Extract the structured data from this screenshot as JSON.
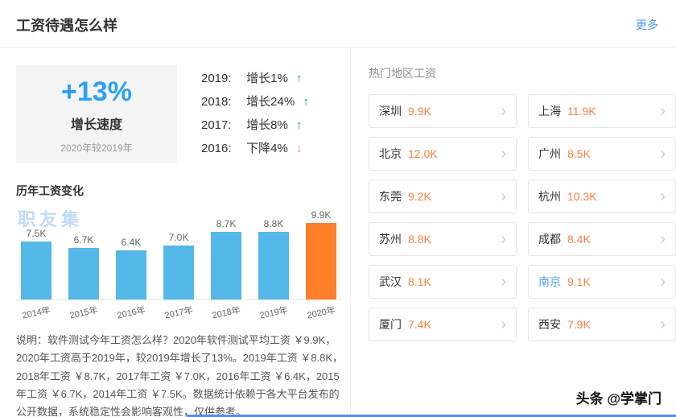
{
  "header": {
    "title": "工资待遇怎么样",
    "more": "更多"
  },
  "growth": {
    "rate": "+13%",
    "label": "增长速度",
    "compare": "2020年较2019年",
    "years": [
      {
        "year": "2019:",
        "text": "增长1%",
        "arrow": "↑",
        "dir": "up"
      },
      {
        "year": "2018:",
        "text": "增长24%",
        "arrow": "↑",
        "dir": "up"
      },
      {
        "year": "2017:",
        "text": "增长8%",
        "arrow": "↑",
        "dir": "up"
      },
      {
        "year": "2016:",
        "text": "下降4%",
        "arrow": "↓",
        "dir": "down"
      }
    ]
  },
  "history": {
    "title": "历年工资变化",
    "watermark": "职友集"
  },
  "chart_data": {
    "type": "bar",
    "title": "历年工资变化",
    "categories": [
      "2014年",
      "2015年",
      "2016年",
      "2017年",
      "2018年",
      "2019年",
      "2020年"
    ],
    "values": [
      7.5,
      6.7,
      6.4,
      7.0,
      8.7,
      8.8,
      9.9
    ],
    "labels": [
      "7.5K",
      "6.7K",
      "6.4K",
      "7.0K",
      "8.7K",
      "8.8K",
      "9.9K"
    ],
    "unit": "K",
    "ylim": [
      0,
      10
    ],
    "highlight_index": 6,
    "bar_color": "#54b8e8",
    "highlight_color": "#ff7e29",
    "grid": false,
    "legend": "none"
  },
  "note": "说明：软件测试今年工资怎么样？2020年软件测试平均工资 ￥9.9K，2020年工资高于2019年，较2019年增长了13%。2019年工资 ￥8.8K，2018年工资 ￥8.7K，2017年工资 ￥7.0K，2016年工资 ￥6.4K，2015年工资 ￥6.7K，2014年工资 ￥7.5K。数据统计依赖于各大平台发布的公开数据，系统稳定性会影响客观性，仅供参考。",
  "hot_cities": {
    "title": "热门地区工资",
    "items": [
      {
        "city": "深圳",
        "salary": "9.9K"
      },
      {
        "city": "上海",
        "salary": "11.9K"
      },
      {
        "city": "北京",
        "salary": "12.0K"
      },
      {
        "city": "广州",
        "salary": "8.5K"
      },
      {
        "city": "东莞",
        "salary": "9.2K"
      },
      {
        "city": "杭州",
        "salary": "10.3K"
      },
      {
        "city": "苏州",
        "salary": "8.8K"
      },
      {
        "city": "成都",
        "salary": "8.4K"
      },
      {
        "city": "武汉",
        "salary": "8.1K"
      },
      {
        "city": "南京",
        "salary": "9.1K",
        "highlight": true
      },
      {
        "city": "厦门",
        "salary": "7.4K"
      },
      {
        "city": "西安",
        "salary": "7.9K"
      }
    ]
  },
  "icons": {
    "chevron": "›",
    "up_arrow": "↑",
    "down_arrow": "↓"
  },
  "colors": {
    "accent_blue": "#2ba0f8",
    "link_blue": "#4d9fea",
    "salary_orange": "#ff8040",
    "bar_blue": "#54b8e8",
    "bar_orange": "#ff7e29",
    "arrow_green": "#0fae62"
  },
  "footer": {
    "watermark": "头条 @学掌门"
  }
}
